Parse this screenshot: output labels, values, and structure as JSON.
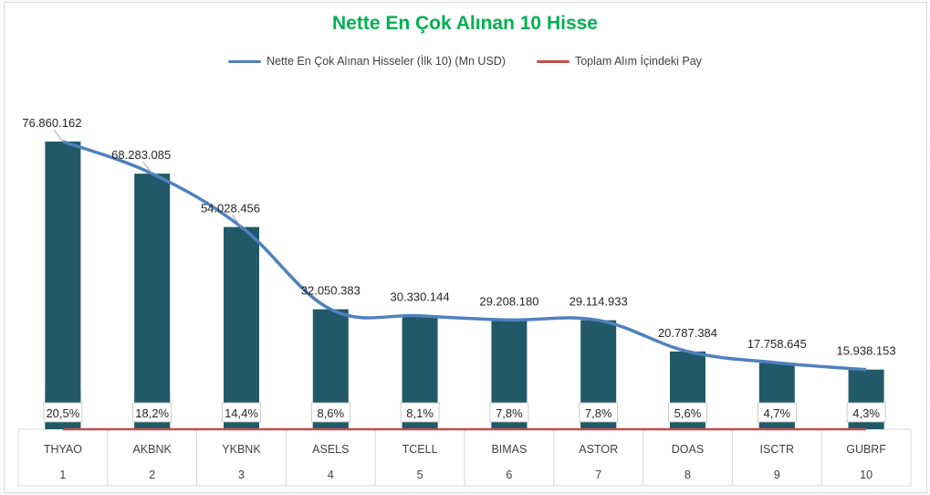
{
  "chart_data": {
    "type": "bar",
    "title": "Nette En Çok Alınan 10 Hisse",
    "categories": [
      "THYAO",
      "AKBNK",
      "YKBNK",
      "ASELS",
      "TCELL",
      "BIMAS",
      "ASTOR",
      "DOAS",
      "ISCTR",
      "GUBRF"
    ],
    "ranks": [
      "1",
      "2",
      "3",
      "4",
      "5",
      "6",
      "7",
      "8",
      "9",
      "10"
    ],
    "series": [
      {
        "name": "Nette En Çok Alınan Hisseler (İlk 10) (Mn USD)",
        "render": "bar+line",
        "values": [
          76860162,
          68283085,
          54028456,
          32050383,
          30330144,
          29208180,
          29114933,
          20787384,
          17758645,
          15938153
        ],
        "labels": [
          "76.860.162",
          "68.283.085",
          "54.028.456",
          "32.050.383",
          "30.330.144",
          "29.208.180",
          "29.114.933",
          "20.787.384",
          "17.758.645",
          "15.938.153"
        ]
      },
      {
        "name": "Toplam Alım İçindeki Pay",
        "render": "bar+line",
        "values": [
          20.5,
          18.2,
          14.4,
          8.6,
          8.1,
          7.8,
          7.8,
          5.6,
          4.7,
          4.3
        ],
        "labels": [
          "20,5%",
          "18,2%",
          "14,4%",
          "8,6%",
          "8,1%",
          "7,8%",
          "7,8%",
          "5,6%",
          "4,7%",
          "4,3%"
        ]
      }
    ],
    "grid": false,
    "legend_position": "top"
  },
  "colors": {
    "bar": "#215968",
    "line_values": "#4f81bd",
    "line_share": "#c0504d",
    "title": "#00b050"
  }
}
